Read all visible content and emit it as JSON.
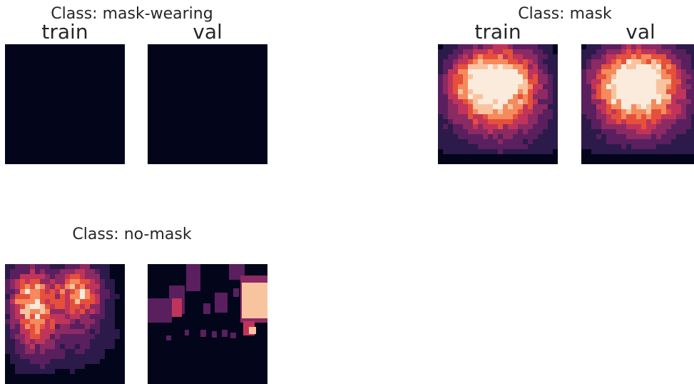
{
  "chart_data": [
    {
      "type": "heatmap",
      "title": "Class: mask-wearing",
      "subplots": [
        {
          "label": "train",
          "pattern": "empty"
        },
        {
          "label": "val",
          "pattern": "empty"
        }
      ]
    },
    {
      "type": "heatmap",
      "title": "Class: mask",
      "subplots": [
        {
          "label": "train",
          "pattern": "central-dense"
        },
        {
          "label": "val",
          "pattern": "central-dense"
        }
      ]
    },
    {
      "type": "heatmap",
      "title": "Class: no-mask",
      "subplots": [
        {
          "label": "",
          "pattern": "two-clusters"
        },
        {
          "label": "",
          "pattern": "sparse-blocks"
        }
      ]
    }
  ],
  "colormap": [
    "#03051a",
    "#2b1a4a",
    "#5a1f5e",
    "#8b2a63",
    "#c0345b",
    "#e5503b",
    "#f58a5c",
    "#f8c4a0",
    "#faebdd"
  ]
}
